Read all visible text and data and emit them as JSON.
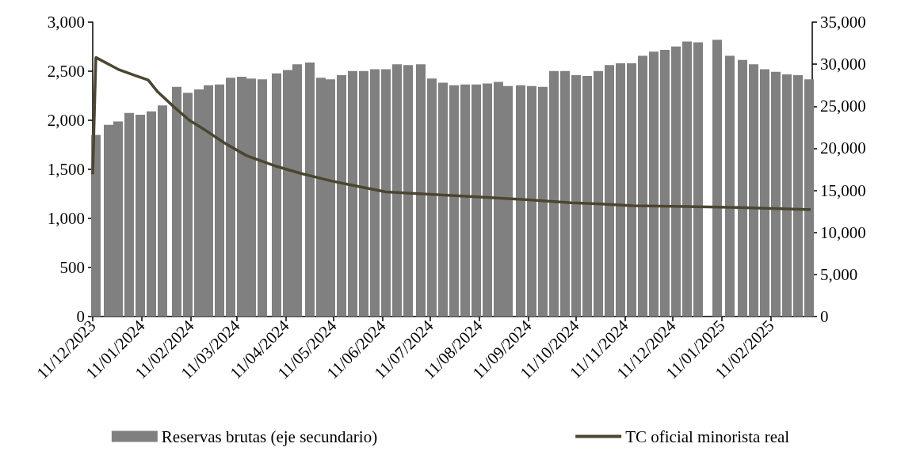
{
  "chart_data": {
    "type": "bar",
    "xlim": [
      "2023-12-11",
      "2025-03-09"
    ],
    "xticks": [
      {
        "value": "2023-12-11",
        "label": "11/12/2023"
      },
      {
        "value": "2024-01-11",
        "label": "11/01/2024"
      },
      {
        "value": "2024-02-11",
        "label": "11/02/2024"
      },
      {
        "value": "2024-03-11",
        "label": "11/03/2024"
      },
      {
        "value": "2024-04-11",
        "label": "11/04/2024"
      },
      {
        "value": "2024-05-11",
        "label": "11/05/2024"
      },
      {
        "value": "2024-06-11",
        "label": "11/06/2024"
      },
      {
        "value": "2024-07-11",
        "label": "11/07/2024"
      },
      {
        "value": "2024-08-11",
        "label": "11/08/2024"
      },
      {
        "value": "2024-09-11",
        "label": "11/09/2024"
      },
      {
        "value": "2024-10-11",
        "label": "11/10/2024"
      },
      {
        "value": "2024-11-11",
        "label": "11/11/2024"
      },
      {
        "value": "2024-12-11",
        "label": "11/12/2024"
      },
      {
        "value": "2025-01-11",
        "label": "11/01/2025"
      },
      {
        "value": "2025-02-11",
        "label": "11/02/2025"
      }
    ],
    "ylim": [
      0,
      3000
    ],
    "yticks": [
      {
        "value": 0,
        "label": "0"
      },
      {
        "value": 500,
        "label": "500"
      },
      {
        "value": 1000,
        "label": "1,000"
      },
      {
        "value": 1500,
        "label": "1,500"
      },
      {
        "value": 2000,
        "label": "2,000"
      },
      {
        "value": 2500,
        "label": "2,500"
      },
      {
        "value": 3000,
        "label": "3,000"
      }
    ],
    "y2lim": [
      0,
      35000
    ],
    "y2ticks": [
      {
        "value": 0,
        "label": "0"
      },
      {
        "value": 5000,
        "label": "5,000"
      },
      {
        "value": 10000,
        "label": "10,000"
      },
      {
        "value": 15000,
        "label": "15,000"
      },
      {
        "value": 20000,
        "label": "20,000"
      },
      {
        "value": 25000,
        "label": "25,000"
      },
      {
        "value": 30000,
        "label": "30,000"
      },
      {
        "value": 35000,
        "label": "35,000"
      }
    ],
    "legend": "bottom",
    "series": [
      {
        "name": "Reservas brutas (eje secundario)",
        "axis": "y2",
        "color": "#808080",
        "x": [
          "2023-12-13",
          "2023-12-21",
          "2023-12-27",
          "2024-01-03",
          "2024-01-10",
          "2024-01-17",
          "2024-01-24",
          "2024-02-02",
          "2024-02-09",
          "2024-02-16",
          "2024-02-22",
          "2024-02-29",
          "2024-03-07",
          "2024-03-14",
          "2024-03-20",
          "2024-03-27",
          "2024-04-05",
          "2024-04-12",
          "2024-04-18",
          "2024-04-26",
          "2024-05-03",
          "2024-05-09",
          "2024-05-16",
          "2024-05-23",
          "2024-05-30",
          "2024-06-06",
          "2024-06-13",
          "2024-06-20",
          "2024-06-27",
          "2024-07-05",
          "2024-07-12",
          "2024-07-19",
          "2024-07-26",
          "2024-08-02",
          "2024-08-09",
          "2024-08-16",
          "2024-08-23",
          "2024-08-29",
          "2024-09-06",
          "2024-09-13",
          "2024-09-20",
          "2024-09-27",
          "2024-10-04",
          "2024-10-11",
          "2024-10-18",
          "2024-10-25",
          "2024-11-01",
          "2024-11-08",
          "2024-11-15",
          "2024-11-22",
          "2024-11-29",
          "2024-12-06",
          "2024-12-13",
          "2024-12-20",
          "2024-12-27",
          "2025-01-08",
          "2025-01-16",
          "2025-01-24",
          "2025-01-31",
          "2025-02-07",
          "2025-02-14",
          "2025-02-21",
          "2025-02-28",
          "2025-03-07"
        ],
        "values": [
          21600,
          22800,
          23200,
          24200,
          24000,
          24400,
          25100,
          27300,
          26600,
          27000,
          27500,
          27600,
          28400,
          28500,
          28300,
          28200,
          28900,
          29300,
          30000,
          30200,
          28400,
          28200,
          28700,
          29200,
          29200,
          29400,
          29400,
          30000,
          29900,
          30000,
          28300,
          27800,
          27500,
          27600,
          27600,
          27700,
          27900,
          27400,
          27500,
          27400,
          27300,
          29200,
          29200,
          28700,
          28600,
          29200,
          29900,
          30100,
          30100,
          31000,
          31500,
          31700,
          32100,
          32700,
          32600,
          32900,
          31000,
          30500,
          30000,
          29400,
          29100,
          28800,
          28700,
          28200
        ]
      },
      {
        "name": "TC oficial minorista real",
        "type": "line",
        "color": "#4b4630",
        "x": [
          "2023-12-11",
          "2023-12-13",
          "2023-12-27",
          "2024-01-06",
          "2024-01-15",
          "2024-01-21",
          "2024-01-31",
          "2024-02-10",
          "2024-02-19",
          "2024-03-03",
          "2024-03-17",
          "2024-04-05",
          "2024-04-20",
          "2024-05-10",
          "2024-05-25",
          "2024-06-13",
          "2024-07-06",
          "2024-08-09",
          "2024-09-11",
          "2024-10-08",
          "2024-10-24",
          "2024-11-16",
          "2024-12-20",
          "2025-01-22",
          "2025-03-08"
        ],
        "values": [
          1450,
          2640,
          2520,
          2460,
          2410,
          2290,
          2140,
          2000,
          1910,
          1770,
          1640,
          1530,
          1460,
          1380,
          1330,
          1270,
          1250,
          1220,
          1190,
          1160,
          1150,
          1130,
          1120,
          1110,
          1090
        ]
      }
    ]
  }
}
